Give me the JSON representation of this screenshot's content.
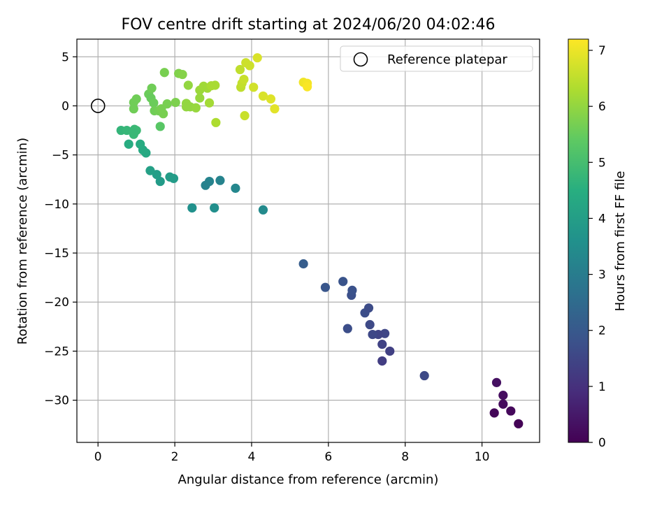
{
  "chart_data": {
    "type": "scatter",
    "title": "FOV centre drift starting at 2024/06/20 04:02:46",
    "xlabel": "Angular distance from reference (arcmin)",
    "ylabel": "Rotation from reference (arcmin)",
    "xlim": [
      -0.55,
      11.5
    ],
    "ylim": [
      -34.3,
      6.8
    ],
    "x_ticks": [
      0,
      2,
      4,
      6,
      8,
      10
    ],
    "y_ticks": [
      5,
      0,
      -5,
      -10,
      -15,
      -20,
      -25,
      -30
    ],
    "grid": true,
    "legend": {
      "position": "top-right",
      "entries": [
        {
          "label": "Reference platepar",
          "marker": "open-circle"
        }
      ]
    },
    "reference_point": {
      "x": 0,
      "y": 0
    },
    "colorbar": {
      "label": "Hours from first FF file",
      "min": 0,
      "max": 7.2,
      "ticks": [
        0,
        1,
        2,
        3,
        4,
        5,
        6,
        7
      ],
      "colormap": "viridis"
    },
    "points": [
      {
        "x": 10.38,
        "y": -28.2,
        "c": 0.3
      },
      {
        "x": 10.55,
        "y": -29.5,
        "c": 0.25
      },
      {
        "x": 10.55,
        "y": -30.4,
        "c": 0.2
      },
      {
        "x": 10.75,
        "y": -31.1,
        "c": 0.15
      },
      {
        "x": 10.32,
        "y": -31.3,
        "c": 0.1
      },
      {
        "x": 10.95,
        "y": -32.4,
        "c": 0.05
      },
      {
        "x": 8.5,
        "y": -27.5,
        "c": 1.6
      },
      {
        "x": 7.6,
        "y": -25.0,
        "c": 1.35
      },
      {
        "x": 7.4,
        "y": -26.0,
        "c": 1.3
      },
      {
        "x": 7.4,
        "y": -24.3,
        "c": 1.4
      },
      {
        "x": 7.47,
        "y": -23.2,
        "c": 1.5
      },
      {
        "x": 7.3,
        "y": -23.3,
        "c": 1.45
      },
      {
        "x": 7.15,
        "y": -23.3,
        "c": 1.55
      },
      {
        "x": 7.08,
        "y": -22.3,
        "c": 1.6
      },
      {
        "x": 6.95,
        "y": -21.1,
        "c": 1.7
      },
      {
        "x": 7.05,
        "y": -20.6,
        "c": 1.65
      },
      {
        "x": 6.6,
        "y": -19.3,
        "c": 1.75
      },
      {
        "x": 6.62,
        "y": -18.8,
        "c": 1.8
      },
      {
        "x": 6.5,
        "y": -22.7,
        "c": 1.7
      },
      {
        "x": 6.38,
        "y": -17.9,
        "c": 1.85
      },
      {
        "x": 5.92,
        "y": -18.5,
        "c": 1.9
      },
      {
        "x": 5.35,
        "y": -16.1,
        "c": 2.1
      },
      {
        "x": 4.3,
        "y": -10.6,
        "c": 3.4
      },
      {
        "x": 3.58,
        "y": -8.4,
        "c": 3.3
      },
      {
        "x": 3.18,
        "y": -7.6,
        "c": 3.2
      },
      {
        "x": 2.9,
        "y": -7.7,
        "c": 3.2
      },
      {
        "x": 2.8,
        "y": -8.1,
        "c": 3.15
      },
      {
        "x": 3.03,
        "y": -10.4,
        "c": 3.55
      },
      {
        "x": 2.45,
        "y": -10.4,
        "c": 3.6
      },
      {
        "x": 1.97,
        "y": -7.4,
        "c": 3.9
      },
      {
        "x": 1.87,
        "y": -7.25,
        "c": 3.95
      },
      {
        "x": 1.62,
        "y": -7.7,
        "c": 3.9
      },
      {
        "x": 1.53,
        "y": -7.0,
        "c": 4.0
      },
      {
        "x": 1.36,
        "y": -6.6,
        "c": 4.05
      },
      {
        "x": 1.25,
        "y": -4.8,
        "c": 4.3
      },
      {
        "x": 1.17,
        "y": -4.5,
        "c": 4.35
      },
      {
        "x": 1.1,
        "y": -3.9,
        "c": 4.4
      },
      {
        "x": 0.8,
        "y": -3.9,
        "c": 4.45
      },
      {
        "x": 0.6,
        "y": -2.5,
        "c": 4.7
      },
      {
        "x": 0.75,
        "y": -2.5,
        "c": 4.75
      },
      {
        "x": 0.95,
        "y": -2.4,
        "c": 4.8
      },
      {
        "x": 1.0,
        "y": -2.5,
        "c": 4.85
      },
      {
        "x": 0.93,
        "y": -2.7,
        "c": 4.8
      },
      {
        "x": 0.93,
        "y": -2.9,
        "c": 4.8
      },
      {
        "x": 1.62,
        "y": -2.1,
        "c": 5.3
      },
      {
        "x": 0.93,
        "y": -0.3,
        "c": 5.6
      },
      {
        "x": 0.93,
        "y": 0.35,
        "c": 5.6
      },
      {
        "x": 1.0,
        "y": 0.7,
        "c": 5.6
      },
      {
        "x": 1.32,
        "y": 1.2,
        "c": 5.55
      },
      {
        "x": 1.4,
        "y": 1.8,
        "c": 5.6
      },
      {
        "x": 1.38,
        "y": 0.8,
        "c": 5.5
      },
      {
        "x": 1.45,
        "y": 0.3,
        "c": 5.55
      },
      {
        "x": 1.47,
        "y": -0.5,
        "c": 5.6
      },
      {
        "x": 1.58,
        "y": -0.5,
        "c": 5.65
      },
      {
        "x": 1.65,
        "y": -0.3,
        "c": 5.7
      },
      {
        "x": 1.7,
        "y": -0.8,
        "c": 5.7
      },
      {
        "x": 1.8,
        "y": 0.2,
        "c": 5.7
      },
      {
        "x": 2.02,
        "y": 0.35,
        "c": 5.75
      },
      {
        "x": 1.73,
        "y": 3.4,
        "c": 5.7
      },
      {
        "x": 2.1,
        "y": 3.3,
        "c": 5.8
      },
      {
        "x": 2.2,
        "y": 3.2,
        "c": 5.85
      },
      {
        "x": 2.3,
        "y": 0.25,
        "c": 6.0
      },
      {
        "x": 2.3,
        "y": -0.1,
        "c": 6.0
      },
      {
        "x": 2.4,
        "y": -0.1,
        "c": 6.0
      },
      {
        "x": 2.35,
        "y": 2.1,
        "c": 6.0
      },
      {
        "x": 2.55,
        "y": -0.2,
        "c": 6.05
      },
      {
        "x": 2.65,
        "y": 0.8,
        "c": 6.05
      },
      {
        "x": 2.65,
        "y": 1.6,
        "c": 6.1
      },
      {
        "x": 2.75,
        "y": 2.0,
        "c": 6.15
      },
      {
        "x": 2.85,
        "y": 1.8,
        "c": 6.15
      },
      {
        "x": 2.9,
        "y": 0.3,
        "c": 6.2
      },
      {
        "x": 2.95,
        "y": 2.05,
        "c": 6.25
      },
      {
        "x": 3.05,
        "y": 2.1,
        "c": 6.25
      },
      {
        "x": 3.07,
        "y": -1.7,
        "c": 6.3
      },
      {
        "x": 3.7,
        "y": 3.7,
        "c": 6.5
      },
      {
        "x": 3.72,
        "y": 1.9,
        "c": 6.5
      },
      {
        "x": 3.75,
        "y": 2.3,
        "c": 6.55
      },
      {
        "x": 3.8,
        "y": 2.7,
        "c": 6.6
      },
      {
        "x": 3.85,
        "y": 4.4,
        "c": 6.65
      },
      {
        "x": 3.82,
        "y": -1.0,
        "c": 6.6
      },
      {
        "x": 3.95,
        "y": 4.1,
        "c": 6.65
      },
      {
        "x": 4.05,
        "y": 1.9,
        "c": 6.7
      },
      {
        "x": 4.15,
        "y": 4.9,
        "c": 6.8
      },
      {
        "x": 4.3,
        "y": 1.0,
        "c": 6.8
      },
      {
        "x": 4.5,
        "y": 0.7,
        "c": 6.85
      },
      {
        "x": 4.6,
        "y": -0.3,
        "c": 6.9
      },
      {
        "x": 5.35,
        "y": 2.4,
        "c": 7.05
      },
      {
        "x": 5.45,
        "y": 2.3,
        "c": 7.1
      },
      {
        "x": 5.45,
        "y": 1.95,
        "c": 7.15
      }
    ]
  }
}
